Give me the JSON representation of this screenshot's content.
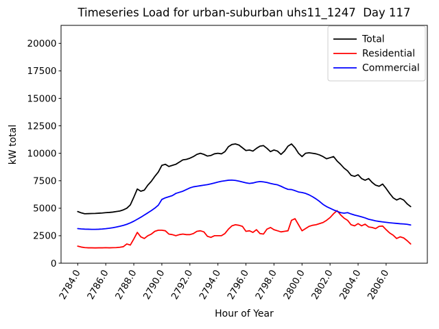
{
  "chart_data": {
    "type": "line",
    "title": "Timeseries Load for urban-suburban uhs11_1247  Day 117",
    "xlabel": "Hour of Year",
    "ylabel": "kW total",
    "grid": false,
    "legend_position": "upper right",
    "xlim": [
      2782.81,
      2808.94
    ],
    "ylim": [
      0,
      21640
    ],
    "x_ticks": [
      2784,
      2786,
      2788,
      2790,
      2792,
      2794,
      2796,
      2798,
      2800,
      2802,
      2804,
      2806
    ],
    "x_tick_labels": [
      "2784.0",
      "2786.0",
      "2788.0",
      "2790.0",
      "2792.0",
      "2794.0",
      "2796.0",
      "2798.0",
      "2800.0",
      "2802.0",
      "2804.0",
      "2806.0"
    ],
    "x_tick_rotation_deg": 60,
    "y_ticks": [
      0,
      2500,
      5000,
      7500,
      10000,
      12500,
      15000,
      17500,
      20000
    ],
    "x": [
      2784.0,
      2784.25,
      2784.5,
      2784.75,
      2785.0,
      2785.25,
      2785.5,
      2785.75,
      2786.0,
      2786.25,
      2786.5,
      2786.75,
      2787.0,
      2787.25,
      2787.5,
      2787.75,
      2788.0,
      2788.25,
      2788.5,
      2788.75,
      2789.0,
      2789.25,
      2789.5,
      2789.75,
      2790.0,
      2790.25,
      2790.5,
      2790.75,
      2791.0,
      2791.25,
      2791.5,
      2791.75,
      2792.0,
      2792.25,
      2792.5,
      2792.75,
      2793.0,
      2793.25,
      2793.5,
      2793.75,
      2794.0,
      2794.25,
      2794.5,
      2794.75,
      2795.0,
      2795.25,
      2795.5,
      2795.75,
      2796.0,
      2796.25,
      2796.5,
      2796.75,
      2797.0,
      2797.25,
      2797.5,
      2797.75,
      2798.0,
      2798.25,
      2798.5,
      2798.75,
      2799.0,
      2799.25,
      2799.5,
      2799.75,
      2800.0,
      2800.25,
      2800.5,
      2800.75,
      2801.0,
      2801.25,
      2801.5,
      2801.75,
      2802.0,
      2802.25,
      2802.5,
      2802.75,
      2803.0,
      2803.25,
      2803.5,
      2803.75,
      2804.0,
      2804.25,
      2804.5,
      2804.75,
      2805.0,
      2805.25,
      2805.5,
      2805.75,
      2806.0,
      2806.25,
      2806.5,
      2806.75,
      2807.0,
      2807.25,
      2807.5,
      2807.75
    ],
    "series": [
      {
        "name": "Total",
        "color": "#000000",
        "values": [
          4700,
          4580,
          4500,
          4510,
          4520,
          4530,
          4550,
          4570,
          4600,
          4620,
          4650,
          4700,
          4750,
          4850,
          5000,
          5300,
          6000,
          6750,
          6550,
          6650,
          7100,
          7450,
          7900,
          8300,
          8900,
          9000,
          8800,
          8900,
          9000,
          9200,
          9400,
          9450,
          9550,
          9700,
          9900,
          10000,
          9900,
          9750,
          9800,
          9950,
          10000,
          9950,
          10150,
          10600,
          10800,
          10850,
          10750,
          10500,
          10250,
          10300,
          10200,
          10450,
          10650,
          10700,
          10450,
          10150,
          10300,
          10200,
          9900,
          10200,
          10650,
          10850,
          10500,
          10000,
          9700,
          10000,
          10050,
          10000,
          9950,
          9850,
          9700,
          9500,
          9600,
          9700,
          9300,
          9000,
          8650,
          8400,
          8000,
          7900,
          8050,
          7700,
          7550,
          7700,
          7350,
          7100,
          7000,
          7200,
          6800,
          6350,
          5950,
          5750,
          5900,
          5750,
          5400,
          5150
        ]
      },
      {
        "name": "Residential",
        "color": "#ff0000",
        "values": [
          1550,
          1470,
          1420,
          1400,
          1400,
          1390,
          1400,
          1400,
          1410,
          1400,
          1410,
          1420,
          1450,
          1500,
          1750,
          1650,
          2200,
          2800,
          2400,
          2250,
          2500,
          2650,
          2900,
          3000,
          3000,
          2950,
          2650,
          2600,
          2500,
          2600,
          2650,
          2600,
          2600,
          2700,
          2900,
          2950,
          2850,
          2450,
          2350,
          2500,
          2500,
          2500,
          2700,
          3100,
          3400,
          3500,
          3450,
          3350,
          2900,
          2950,
          2800,
          3050,
          2700,
          2650,
          3100,
          3250,
          3050,
          2950,
          2850,
          2900,
          2950,
          3900,
          4050,
          3500,
          2950,
          3150,
          3350,
          3450,
          3500,
          3600,
          3700,
          3900,
          4150,
          4500,
          4780,
          4400,
          4100,
          3900,
          3500,
          3400,
          3600,
          3400,
          3550,
          3300,
          3250,
          3150,
          3350,
          3380,
          3050,
          2750,
          2550,
          2250,
          2400,
          2300,
          2050,
          1750
        ]
      },
      {
        "name": "Commercial",
        "color": "#0000ff",
        "values": [
          3150,
          3120,
          3100,
          3090,
          3080,
          3080,
          3090,
          3110,
          3140,
          3180,
          3230,
          3290,
          3360,
          3440,
          3540,
          3670,
          3820,
          4000,
          4180,
          4380,
          4580,
          4790,
          5010,
          5280,
          5800,
          5950,
          6050,
          6150,
          6350,
          6450,
          6550,
          6700,
          6850,
          6950,
          7000,
          7050,
          7100,
          7150,
          7220,
          7300,
          7380,
          7450,
          7500,
          7550,
          7560,
          7530,
          7470,
          7390,
          7310,
          7260,
          7300,
          7380,
          7430,
          7400,
          7340,
          7260,
          7190,
          7130,
          7000,
          6850,
          6720,
          6700,
          6600,
          6480,
          6430,
          6350,
          6220,
          6050,
          5850,
          5620,
          5350,
          5150,
          5000,
          4850,
          4720,
          4600,
          4550,
          4600,
          4480,
          4380,
          4300,
          4220,
          4120,
          4000,
          3930,
          3850,
          3800,
          3760,
          3720,
          3680,
          3650,
          3620,
          3590,
          3570,
          3540,
          3480
        ]
      }
    ]
  }
}
